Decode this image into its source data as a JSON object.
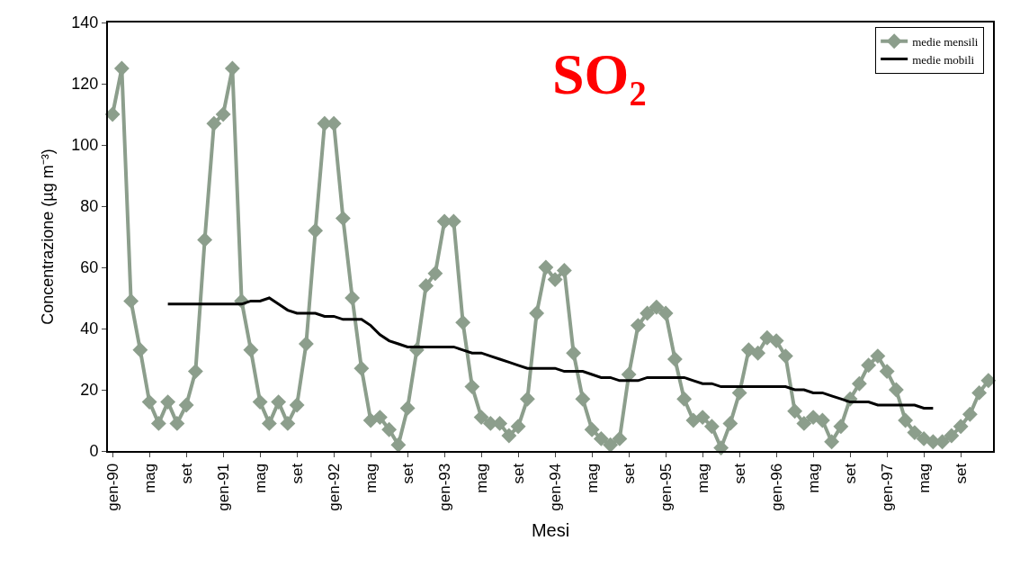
{
  "chart_data": {
    "type": "line",
    "title": "SO₂",
    "xlabel": "Mesi",
    "ylabel": "Concentrazione (µg m⁻³)",
    "categories": [
      "gen-90",
      null,
      null,
      null,
      "mag",
      null,
      null,
      null,
      "set",
      null,
      null,
      null,
      "gen-91",
      null,
      null,
      null,
      "mag",
      null,
      null,
      null,
      "set",
      null,
      null,
      null,
      "gen-92",
      null,
      null,
      null,
      "mag",
      null,
      null,
      null,
      "set",
      null,
      null,
      null,
      "gen-93",
      null,
      null,
      null,
      "mag",
      null,
      null,
      null,
      "set",
      null,
      null,
      null,
      "gen-94",
      null,
      null,
      null,
      "mag",
      null,
      null,
      null,
      "set",
      null,
      null,
      null,
      "gen-95",
      null,
      null,
      null,
      "mag",
      null,
      null,
      null,
      "set",
      null,
      null,
      null,
      "gen-96",
      null,
      null,
      null,
      "mag",
      null,
      null,
      null,
      "set",
      null,
      null,
      null,
      "gen-97",
      null,
      null,
      null,
      "mag",
      null,
      null,
      null,
      "set",
      null,
      null,
      null
    ],
    "series": [
      {
        "name": "medie mensili",
        "color": "#8c9e8c",
        "marker": "diamond",
        "values": [
          110,
          125,
          49,
          33,
          16,
          9,
          16,
          9,
          15,
          26,
          69,
          107,
          110,
          125,
          49,
          33,
          16,
          9,
          16,
          9,
          15,
          35,
          72,
          107,
          107,
          76,
          50,
          27,
          10,
          11,
          7,
          2,
          14,
          33,
          54,
          58,
          75,
          75,
          42,
          21,
          11,
          9,
          9,
          5,
          8,
          17,
          45,
          60,
          56,
          59,
          32,
          17,
          7,
          4,
          2,
          4,
          25,
          41,
          45,
          47,
          45,
          30,
          17,
          10,
          11,
          8,
          1,
          9,
          19,
          33,
          32,
          37,
          36,
          31,
          13,
          9,
          11,
          10,
          3,
          8,
          17,
          22,
          28,
          31,
          26,
          20,
          10,
          6,
          4,
          3,
          3,
          5,
          8,
          12,
          19,
          23
        ]
      },
      {
        "name": "medie mobili",
        "color": "#000000",
        "marker": "none",
        "values": [
          null,
          null,
          null,
          null,
          null,
          null,
          48,
          48,
          48,
          48,
          48,
          48,
          48,
          48,
          48,
          49,
          49,
          50,
          48,
          46,
          45,
          45,
          45,
          44,
          44,
          43,
          43,
          43,
          41,
          38,
          36,
          35,
          34,
          34,
          34,
          34,
          34,
          34,
          33,
          32,
          32,
          31,
          30,
          29,
          28,
          27,
          27,
          27,
          27,
          26,
          26,
          26,
          25,
          24,
          24,
          23,
          23,
          23,
          24,
          24,
          24,
          24,
          24,
          23,
          22,
          22,
          21,
          21,
          21,
          21,
          21,
          21,
          21,
          21,
          20,
          20,
          19,
          19,
          18,
          17,
          16,
          16,
          16,
          15,
          15,
          15,
          15,
          15,
          14,
          14,
          null,
          null,
          null,
          null,
          null,
          null
        ]
      }
    ],
    "ylim": [
      0,
      140
    ],
    "yticks": [
      0,
      20,
      40,
      60,
      80,
      100,
      120,
      140
    ],
    "legend": "top right",
    "line_style": "solid"
  }
}
